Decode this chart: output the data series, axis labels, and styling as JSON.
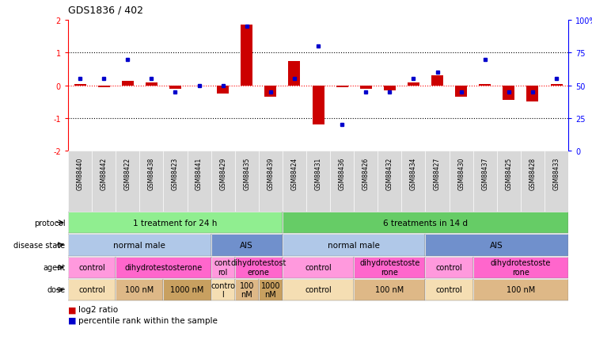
{
  "title": "GDS1836 / 402",
  "samples": [
    "GSM88440",
    "GSM88442",
    "GSM88422",
    "GSM88438",
    "GSM88423",
    "GSM88441",
    "GSM88429",
    "GSM88435",
    "GSM88439",
    "GSM88424",
    "GSM88431",
    "GSM88436",
    "GSM88426",
    "GSM88432",
    "GSM88434",
    "GSM88427",
    "GSM88430",
    "GSM88437",
    "GSM88425",
    "GSM88428",
    "GSM88433"
  ],
  "log2_ratio": [
    0.05,
    -0.05,
    0.15,
    0.1,
    -0.1,
    0.0,
    -0.25,
    1.85,
    -0.35,
    0.75,
    -1.2,
    -0.05,
    -0.1,
    -0.15,
    0.1,
    0.3,
    -0.35,
    0.05,
    -0.45,
    -0.5,
    0.05
  ],
  "percentile": [
    55,
    55,
    70,
    55,
    45,
    50,
    50,
    95,
    45,
    55,
    80,
    20,
    45,
    45,
    55,
    60,
    45,
    70,
    45,
    45,
    55
  ],
  "protocol_groups": [
    {
      "label": "1 treatment for 24 h",
      "start": 0,
      "end": 9,
      "color": "#90EE90"
    },
    {
      "label": "6 treatments in 14 d",
      "start": 9,
      "end": 21,
      "color": "#66CC66"
    }
  ],
  "disease_groups": [
    {
      "label": "normal male",
      "start": 0,
      "end": 6,
      "color": "#B0C8E8"
    },
    {
      "label": "AIS",
      "start": 6,
      "end": 9,
      "color": "#7090CC"
    },
    {
      "label": "normal male",
      "start": 9,
      "end": 15,
      "color": "#B0C8E8"
    },
    {
      "label": "AIS",
      "start": 15,
      "end": 21,
      "color": "#7090CC"
    }
  ],
  "agent_groups": [
    {
      "label": "control",
      "start": 0,
      "end": 2,
      "color": "#FF99DD"
    },
    {
      "label": "dihydrotestosterone",
      "start": 2,
      "end": 6,
      "color": "#FF66CC"
    },
    {
      "label": "cont\nrol",
      "start": 6,
      "end": 7,
      "color": "#FF99DD"
    },
    {
      "label": "dihydrotestost\nerone",
      "start": 7,
      "end": 9,
      "color": "#FF66CC"
    },
    {
      "label": "control",
      "start": 9,
      "end": 12,
      "color": "#FF99DD"
    },
    {
      "label": "dihydrotestoste\nrone",
      "start": 12,
      "end": 15,
      "color": "#FF66CC"
    },
    {
      "label": "control",
      "start": 15,
      "end": 17,
      "color": "#FF99DD"
    },
    {
      "label": "dihydrotestoste\nrone",
      "start": 17,
      "end": 21,
      "color": "#FF66CC"
    }
  ],
  "dose_groups": [
    {
      "label": "control",
      "start": 0,
      "end": 2,
      "color": "#F5DEB3"
    },
    {
      "label": "100 nM",
      "start": 2,
      "end": 4,
      "color": "#DEB887"
    },
    {
      "label": "1000 nM",
      "start": 4,
      "end": 6,
      "color": "#C8A060"
    },
    {
      "label": "contro\nl",
      "start": 6,
      "end": 7,
      "color": "#F5DEB3"
    },
    {
      "label": "100\nnM",
      "start": 7,
      "end": 8,
      "color": "#DEB887"
    },
    {
      "label": "1000\nnM",
      "start": 8,
      "end": 9,
      "color": "#C8A060"
    },
    {
      "label": "control",
      "start": 9,
      "end": 12,
      "color": "#F5DEB3"
    },
    {
      "label": "100 nM",
      "start": 12,
      "end": 15,
      "color": "#DEB887"
    },
    {
      "label": "control",
      "start": 15,
      "end": 17,
      "color": "#F5DEB3"
    },
    {
      "label": "100 nM",
      "start": 17,
      "end": 21,
      "color": "#DEB887"
    }
  ],
  "row_labels": [
    "protocol",
    "disease state",
    "agent",
    "dose"
  ],
  "ylim_left": [
    -2,
    2
  ],
  "ylim_right": [
    0,
    100
  ],
  "bar_color": "#CC0000",
  "dot_color": "#0000CC",
  "legend_items": [
    {
      "label": "log2 ratio",
      "color": "#CC0000"
    },
    {
      "label": "percentile rank within the sample",
      "color": "#0000CC"
    }
  ],
  "bg_color": "#FFFFFF"
}
